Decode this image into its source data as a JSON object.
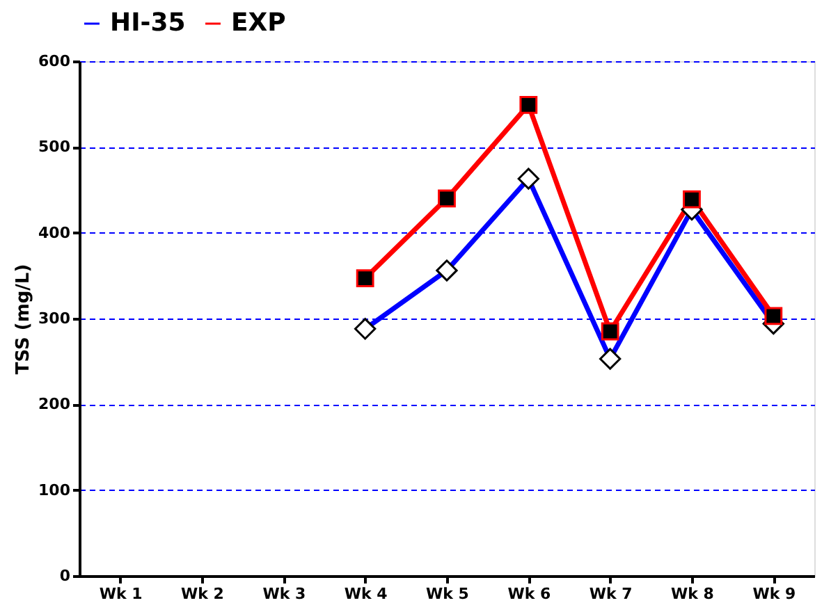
{
  "chart_data": {
    "type": "line",
    "ylabel": "TSS  (mg/L)",
    "categories": [
      "Wk 1",
      "Wk 2",
      "Wk 3",
      "Wk 4",
      "Wk 5",
      "Wk 6",
      "Wk 7",
      "Wk 8",
      "Wk 9"
    ],
    "series": [
      {
        "name": "HI-35",
        "color": "#0000ff",
        "marker": "diamond",
        "values": [
          null,
          null,
          null,
          288,
          356,
          463,
          253,
          427,
          294
        ]
      },
      {
        "name": "EXP",
        "color": "#ff0000",
        "marker": "square",
        "values": [
          null,
          null,
          null,
          347,
          440,
          549,
          285,
          439,
          303
        ]
      }
    ],
    "ylim": [
      0,
      600
    ],
    "yticks": [
      0,
      100,
      200,
      300,
      400,
      500,
      600
    ],
    "grid": "y",
    "legend": "top",
    "line_style": "solid"
  }
}
